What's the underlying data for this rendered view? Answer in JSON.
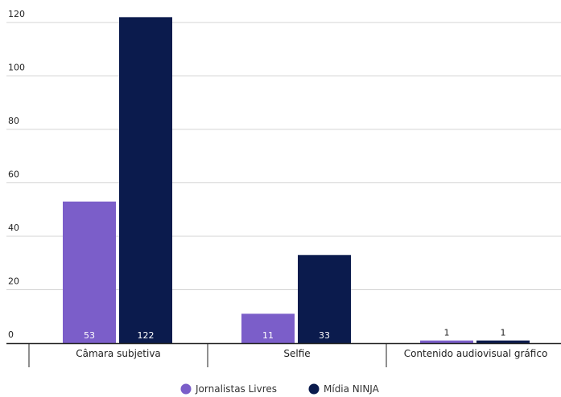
{
  "chart_data": {
    "type": "bar",
    "title": "",
    "xlabel": "",
    "ylabel": "",
    "categories": [
      "Câmara subjetiva",
      "Selfie",
      "Contenido audiovisual gráfico"
    ],
    "series": [
      {
        "name": "Jornalistas Livres",
        "values": [
          53,
          11,
          1
        ],
        "color": "#7b5ec9"
      },
      {
        "name": "Mídia NINJA",
        "values": [
          122,
          33,
          1
        ],
        "color": "#0b1b4d"
      }
    ],
    "ylim": [
      0,
      120
    ],
    "yticks": [
      0,
      20,
      40,
      60,
      80,
      100,
      120
    ],
    "grid": true,
    "legend_position": "bottom-center",
    "data_labels": true
  }
}
